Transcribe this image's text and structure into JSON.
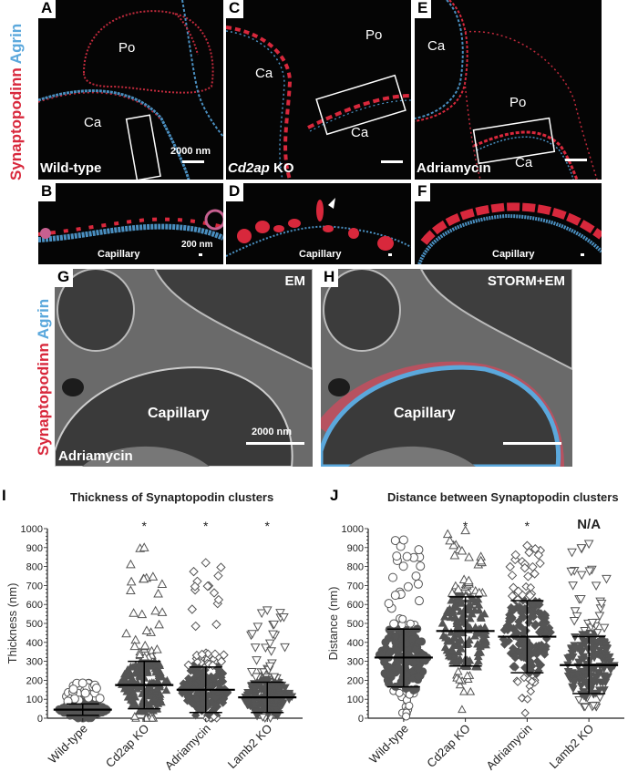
{
  "figure": {
    "side_label": {
      "red": "Synaptopodinn",
      "blue": "Agrin"
    },
    "colors": {
      "synaptopodin": "#d8283c",
      "agrin": "#5ba8dc",
      "background": "#050505"
    },
    "panels": {
      "A": {
        "letter": "A",
        "condition": "Wild-type",
        "labels": [
          "Po",
          "Ca"
        ],
        "scale_bar": "2000 nm"
      },
      "B": {
        "letter": "B",
        "label": "Capillary",
        "scale_bar": "200 nm"
      },
      "C": {
        "letter": "C",
        "condition_italic": "Cd2ap",
        "condition_suffix": " KO",
        "labels": [
          "Po",
          "Ca",
          "Ca"
        ]
      },
      "D": {
        "letter": "D",
        "label": "Capillary"
      },
      "E": {
        "letter": "E",
        "condition": "Adriamycin",
        "labels": [
          "Ca",
          "Po",
          "Ca"
        ]
      },
      "F": {
        "letter": "F",
        "label": "Capillary"
      },
      "G": {
        "letter": "G",
        "mode": "EM",
        "label": "Capillary",
        "condition": "Adriamycin",
        "scale_bar": "2000 nm"
      },
      "H": {
        "letter": "H",
        "mode": "STORM+EM",
        "label": "Capillary"
      }
    }
  },
  "chart_data": [
    {
      "panel": "I",
      "type": "scatter",
      "title": "Thickness of Synaptopodin clusters",
      "xlabel": "",
      "ylabel": "Thickness (nm)",
      "ylim": [
        0,
        1000
      ],
      "yticks": [
        0,
        100,
        200,
        300,
        400,
        500,
        600,
        700,
        800,
        900,
        1000
      ],
      "categories": [
        "Wild-type",
        "Cd2ap KO",
        "Adriamycin",
        "Lamb2 KO"
      ],
      "markers": [
        "circle",
        "triangle-up",
        "diamond",
        "triangle-down"
      ],
      "significance": [
        "",
        "*",
        "*",
        "*"
      ],
      "mean": [
        45,
        175,
        150,
        110
      ],
      "sd_low": [
        15,
        50,
        30,
        30
      ],
      "sd_high": [
        75,
        300,
        270,
        190
      ],
      "max_outlier": [
        185,
        900,
        820,
        570
      ],
      "grid": false
    },
    {
      "panel": "J",
      "type": "scatter",
      "title": "Distance between Synaptopodin clusters",
      "xlabel": "",
      "ylabel": "Distance (nm)",
      "ylim": [
        0,
        1000
      ],
      "yticks": [
        0,
        100,
        200,
        300,
        400,
        500,
        600,
        700,
        800,
        900,
        1000
      ],
      "categories": [
        "Wild-type",
        "Cd2ap KO",
        "Adriamycin",
        "Lamb2 KO"
      ],
      "markers": [
        "circle",
        "triangle-up",
        "diamond",
        "triangle-down"
      ],
      "significance": [
        "",
        "*",
        "*",
        "N/A"
      ],
      "mean": [
        320,
        460,
        430,
        280
      ],
      "sd_low": [
        165,
        275,
        240,
        130
      ],
      "sd_high": [
        470,
        640,
        620,
        430
      ],
      "max_outlier": [
        940,
        990,
        910,
        920
      ],
      "min_outlier": [
        0,
        140,
        70,
        60
      ],
      "grid": false
    }
  ]
}
